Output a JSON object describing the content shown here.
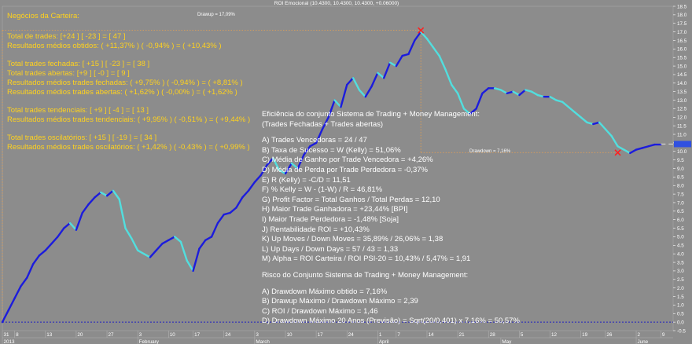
{
  "title": "ROI Emocional (10.4300, 10.4300, 10.4300, +0.06000)",
  "annotations": {
    "drawup": "Drawup = 17,09%",
    "drawdown": "Drawdown = 7,16%"
  },
  "left_panel": {
    "heading": "Negócios da Carteira:",
    "lines": [
      "Total de trades: [+24 ] [ -23 ] = [ 47 ]",
      "Resultados médios obtidos: ( +11,37% ) ( -0,94% ) = ( +10,43% )",
      "",
      "Total trades fechadas: [ +15 ] [ -23 ] = [ 38 ]",
      "Total trades abertas: [+9 ] [ -0 ] = [ 9 ]",
      "Resultados médios trades fechadas: ( +9,75% ) ( -0,94% ) = ( +8,81% )",
      "Resultados médios trades abertas: ( +1,62% ) ( -0,00% ) = ( +1,62% )",
      "",
      "Total trades tendenciais: [ +9 ] [ -4 ] = [ 13 ]",
      "Resultados médios trades tendenciais: ( +9,95% ) ( -0,51% ) = ( +9,44% )",
      "",
      "Total trades oscilatórios: [ +15 ] [ -19 ] = [ 34 ]",
      "Resultados médios trades oscilatórios: ( +1,42% ) ( -0,43% ) = ( +0,99% )"
    ]
  },
  "right_panel": {
    "lines": [
      "Eficiência do conjunto Sistema de Trading + Money Management:",
      "(Trades Fechadas + Trades abertas)",
      "",
      "A) Trades Vencedoras = 24 / 47",
      "B) Taxa de Sucesso = W (Kelly) = 51,06%",
      "C) Média de Ganho por Trade Vencedora = +4,26%",
      "D) Média de Perda por Trade Perdedora = -0,37%",
      "E) R (Kelly) = -C/D = 11,51",
      "F) %  Kelly = W - (1-W) / R = 46,81%",
      "G) Profit Factor = Total Ganhos / Total Perdas = 12,10",
      "H) Maior Trade Ganhadora = +23,44%    [BPI]",
      "I) Maior Trade Perdedora = -1,48%    [Soja]",
      "J) Rentabilidade ROI = +10,43%",
      "K) Up Moves / Down Moves = 35,89% / 26,06% = 1,38",
      "L) Up Days / Down Days = 57 / 43 = 1,33",
      "M) Alpha = ROI Carteira / ROI PSI-20 = 10,43% / 5,47% = 1,91",
      "",
      "Risco do Conjunto Sistema de Trading + Money Management:",
      "",
      "A) Drawdown Máximo obtido = 7,16%",
      "B) Drawup Máximo / Drawdown Máximo = 2,39",
      "C) ROI / Drawdown Máximo = 1,46",
      "D) Drawdown Máximo 20 Anos (Previsão) = Sqrt(20/0,401) x 7,16% = 50,57%"
    ]
  },
  "colors": {
    "background": "#8c8c8c",
    "up": "#1c1cdc",
    "down": "#52dede",
    "text_yellow": "#ffd21e",
    "text_white": "#ffffff",
    "guide_orange": "#e8a050",
    "zero_line": "#2020c0",
    "marker_red": "#ff2020"
  },
  "chart_data": {
    "type": "line",
    "title": "ROI Emocional (10.4300, 10.4300, 10.4300, +0.06000)",
    "xlabel": "",
    "ylabel": "",
    "ylim": [
      -0.5,
      18.5
    ],
    "yticks": [
      "-0.5",
      "0.0",
      "0.5",
      "1.0",
      "1.5",
      "2.0",
      "2.5",
      "3.0",
      "3.5",
      "4.0",
      "4.5",
      "5.0",
      "5.5",
      "6.0",
      "6.5",
      "7.0",
      "7.5",
      "8.0",
      "8.5",
      "9.0",
      "9.5",
      "10.0",
      "10.5",
      "11.0",
      "11.5",
      "12.0",
      "12.5",
      "13.0",
      "13.5",
      "14.0",
      "14.5",
      "15.0",
      "15.5",
      "16.0",
      "16.5",
      "17.0",
      "17.5",
      "18.0",
      "18.5"
    ],
    "x_day_labels": [
      {
        "i": 0,
        "t": "31"
      },
      {
        "i": 2,
        "t": "8"
      },
      {
        "i": 7,
        "t": "13"
      },
      {
        "i": 12,
        "t": "20"
      },
      {
        "i": 17,
        "t": "27"
      },
      {
        "i": 22,
        "t": "3"
      },
      {
        "i": 27,
        "t": "10"
      },
      {
        "i": 31,
        "t": "17"
      },
      {
        "i": 36,
        "t": "24"
      },
      {
        "i": 41,
        "t": "3"
      },
      {
        "i": 46,
        "t": "10"
      },
      {
        "i": 51,
        "t": "17"
      },
      {
        "i": 56,
        "t": "24"
      },
      {
        "i": 61,
        "t": "1"
      },
      {
        "i": 64,
        "t": "7"
      },
      {
        "i": 69,
        "t": "14"
      },
      {
        "i": 74,
        "t": "21"
      },
      {
        "i": 79,
        "t": "28"
      },
      {
        "i": 84,
        "t": "5"
      },
      {
        "i": 89,
        "t": "12"
      },
      {
        "i": 94,
        "t": "19"
      },
      {
        "i": 98,
        "t": "26"
      },
      {
        "i": 103,
        "t": "2"
      },
      {
        "i": 107,
        "t": "9"
      }
    ],
    "x_month_labels": [
      {
        "i": 0,
        "t": "2013"
      },
      {
        "i": 22,
        "t": "February"
      },
      {
        "i": 41,
        "t": "March"
      },
      {
        "i": 61,
        "t": "April"
      },
      {
        "i": 81,
        "t": "May"
      },
      {
        "i": 103,
        "t": "June"
      }
    ],
    "x_count": 110,
    "series": [
      {
        "values": [
          0.0,
          0.7,
          1.4,
          2.1,
          2.6,
          3.4,
          3.9,
          4.2,
          4.6,
          5.0,
          5.5,
          5.8,
          5.4,
          6.4,
          6.9,
          7.3,
          7.6,
          7.4,
          7.7,
          7.2,
          5.5,
          4.9,
          4.2,
          4.0,
          3.8,
          4.2,
          4.6,
          4.8,
          5.0,
          4.7,
          3.6,
          3.0,
          4.3,
          4.8,
          5.0,
          5.8,
          6.3,
          6.4,
          6.7,
          7.3,
          7.7,
          8.2,
          8.6,
          9.2,
          9.6,
          8.9,
          8.7,
          9.3,
          9.0,
          9.8,
          10.3,
          10.5,
          11.3,
          12.0,
          13.0,
          12.6,
          13.9,
          14.3,
          13.6,
          13.2,
          13.8,
          14.6,
          14.3,
          15.2,
          15.0,
          15.6,
          15.7,
          16.5,
          17.0,
          16.6,
          16.1,
          15.6,
          14.8,
          13.9,
          13.4,
          12.5,
          12.2,
          12.5,
          13.4,
          13.7,
          13.7,
          13.6,
          13.4,
          13.5,
          13.3,
          13.6,
          13.5,
          13.3,
          13.2,
          13.2,
          13.0,
          12.9,
          12.6,
          12.3,
          12.0,
          11.7,
          11.6,
          11.7,
          11.3,
          10.9,
          10.3,
          10.1,
          9.9,
          10.1,
          10.2,
          10.3,
          10.4,
          10.4,
          null,
          null
        ],
        "projection": {
          "from_index": 107,
          "to_index": 109,
          "value": 10.43
        }
      }
    ],
    "guides": {
      "drawup_from": {
        "i": 0,
        "v": 0.0
      },
      "drawup_to": {
        "i": 68,
        "v": 17.09
      },
      "drawdown_to": {
        "i": 100,
        "v": 9.93
      }
    },
    "grid": false
  }
}
